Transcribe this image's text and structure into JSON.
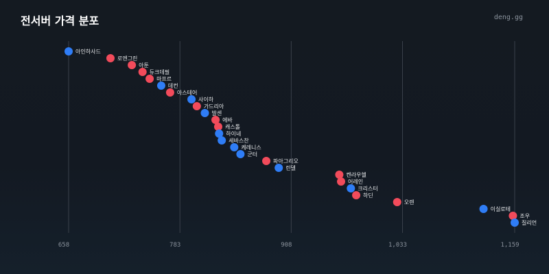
{
  "header": {
    "title": "전서버 가격 분포",
    "brand": "deng.gg"
  },
  "colors": {
    "blue": "#2f7df6",
    "red": "#f24b5b",
    "grid": "#3a414b",
    "tick_text": "#8a929c",
    "label_text": "#e6e8ea"
  },
  "chart_data": {
    "type": "scatter",
    "title": "전서버 가격 분포",
    "xlabel": "",
    "ylabel": "",
    "xlim": [
      652,
      1190
    ],
    "xticks": [
      658,
      783,
      908,
      1033,
      1159
    ],
    "xtick_labels": [
      "658",
      "783",
      "908",
      "1,033",
      "1,159"
    ],
    "grid": true,
    "points": [
      {
        "label": "아인하사드",
        "value": 658,
        "color": "blue"
      },
      {
        "label": "로엔그린",
        "value": 705,
        "color": "red"
      },
      {
        "label": "아툰",
        "value": 729,
        "color": "red"
      },
      {
        "label": "듀크데필",
        "value": 741,
        "color": "red"
      },
      {
        "label": "마프르",
        "value": 749,
        "color": "red"
      },
      {
        "label": "데컨",
        "value": 762,
        "color": "blue"
      },
      {
        "label": "아스테어",
        "value": 772,
        "color": "red"
      },
      {
        "label": "사이하",
        "value": 796,
        "color": "blue"
      },
      {
        "label": "가드리아",
        "value": 802,
        "color": "red"
      },
      {
        "label": "발센",
        "value": 811,
        "color": "blue"
      },
      {
        "label": "에바",
        "value": 823,
        "color": "red"
      },
      {
        "label": "캐스톨",
        "value": 826,
        "color": "red"
      },
      {
        "label": "하이네",
        "value": 827,
        "color": "blue"
      },
      {
        "label": "세바스찬",
        "value": 830,
        "color": "blue"
      },
      {
        "label": "케레니스",
        "value": 844,
        "color": "blue"
      },
      {
        "label": "군터",
        "value": 851,
        "color": "blue"
      },
      {
        "label": "파아그리오",
        "value": 880,
        "color": "red"
      },
      {
        "label": "린델",
        "value": 894,
        "color": "blue"
      },
      {
        "label": "켄라우헬",
        "value": 962,
        "color": "red"
      },
      {
        "label": "어레인",
        "value": 964,
        "color": "red"
      },
      {
        "label": "크리스터",
        "value": 975,
        "color": "blue"
      },
      {
        "label": "하딘",
        "value": 981,
        "color": "red"
      },
      {
        "label": "오렌",
        "value": 1027,
        "color": "red"
      },
      {
        "label": "이실로테",
        "value": 1124,
        "color": "blue"
      },
      {
        "label": "조우",
        "value": 1157,
        "color": "red"
      },
      {
        "label": "질리언",
        "value": 1159,
        "color": "blue"
      }
    ]
  }
}
